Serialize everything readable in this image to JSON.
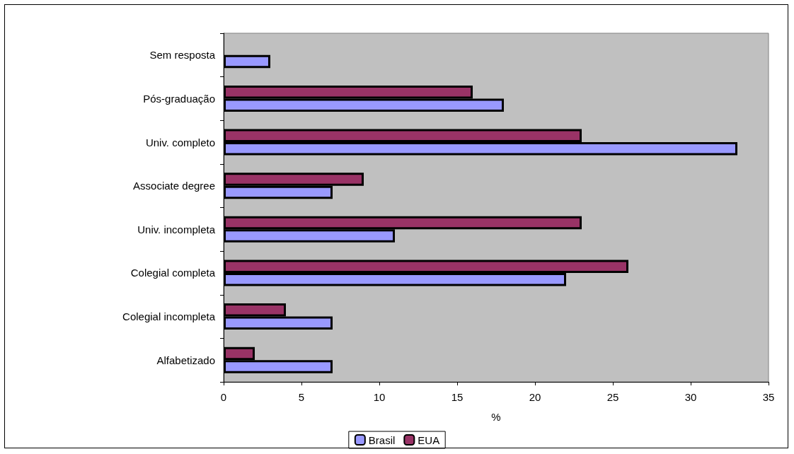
{
  "chart_data": {
    "type": "bar",
    "orientation": "horizontal",
    "xlabel": "%",
    "categories": [
      "Sem resposta",
      "Pós-graduação",
      "Univ. completo",
      "Associate degree",
      "Univ. incompleta",
      "Colegial completa",
      "Colegial incompleta",
      "Alfabetizado"
    ],
    "series": [
      {
        "name": "Brasil",
        "color": "#9999ff",
        "values": [
          3,
          18,
          33,
          7,
          11,
          22,
          7,
          7
        ]
      },
      {
        "name": "EUA",
        "color": "#993366",
        "values": [
          null,
          16,
          23,
          9,
          23,
          26,
          4,
          2
        ]
      }
    ],
    "xlim": [
      0,
      35
    ],
    "xticks": [
      0,
      5,
      10,
      15,
      20,
      25,
      30,
      35
    ],
    "grid": false,
    "legend": "bottom"
  }
}
